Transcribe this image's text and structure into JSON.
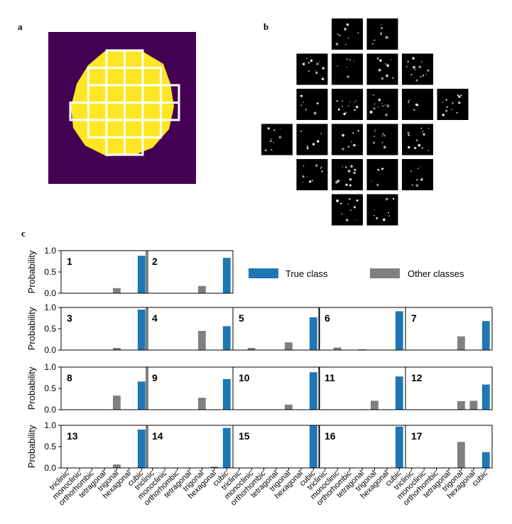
{
  "panels": {
    "a": "a",
    "b": "b",
    "c": "c"
  },
  "legend": {
    "true_label": "True class",
    "other_label": "Other classes"
  },
  "colors": {
    "true": "#1f77b4",
    "other": "#808080",
    "map_background": "#440154",
    "map_fill": "#fde725",
    "grid": "#ffffff",
    "pattern_background": "#000000"
  },
  "panel_a": {
    "type": "heatmap",
    "description_colors": [
      "#440154",
      "#fde725"
    ]
  },
  "panel_b": {
    "type": "image-grid",
    "row_tile_counts": [
      2,
      4,
      5,
      5,
      4,
      2
    ]
  },
  "chart_data": {
    "type": "bar",
    "categories": [
      "triclinic",
      "monoclinic",
      "orthorhombic",
      "tetragonal",
      "trigonal",
      "hexagonal",
      "cubic"
    ],
    "ylabel": "Probability",
    "ylim": [
      0,
      1
    ],
    "yticks": [
      "0.0",
      "0.5",
      "1.0"
    ],
    "legend_placement": "top-right",
    "true_class": "cubic",
    "grid": false,
    "subplots": [
      {
        "label": "1",
        "values": [
          0,
          0,
          0,
          0,
          0.12,
          0,
          0.88
        ]
      },
      {
        "label": "2",
        "values": [
          0,
          0,
          0,
          0,
          0.17,
          0,
          0.83
        ]
      },
      {
        "label": "3",
        "values": [
          0,
          0,
          0,
          0,
          0.05,
          0,
          0.95
        ]
      },
      {
        "label": "4",
        "values": [
          0,
          0,
          0,
          0,
          0.45,
          0,
          0.56
        ]
      },
      {
        "label": "5",
        "values": [
          0,
          0.05,
          0,
          0,
          0.18,
          0,
          0.77
        ]
      },
      {
        "label": "6",
        "values": [
          0,
          0.06,
          0,
          0.02,
          0,
          0,
          0.91
        ]
      },
      {
        "label": "7",
        "values": [
          0,
          0,
          0,
          0,
          0.32,
          0,
          0.68
        ]
      },
      {
        "label": "8",
        "values": [
          0,
          0,
          0,
          0,
          0.33,
          0,
          0.66
        ]
      },
      {
        "label": "9",
        "values": [
          0,
          0,
          0,
          0,
          0.28,
          0,
          0.72
        ]
      },
      {
        "label": "10",
        "values": [
          0,
          0,
          0,
          0,
          0.12,
          0,
          0.88
        ]
      },
      {
        "label": "11",
        "values": [
          0,
          0,
          0,
          0.01,
          0.21,
          0,
          0.78
        ]
      },
      {
        "label": "12",
        "values": [
          0,
          0,
          0,
          0,
          0.2,
          0.21,
          0.59
        ]
      },
      {
        "label": "13",
        "values": [
          0,
          0,
          0,
          0,
          0.08,
          0,
          0.9
        ]
      },
      {
        "label": "14",
        "values": [
          0,
          0,
          0,
          0,
          0,
          0.03,
          0.94
        ]
      },
      {
        "label": "15",
        "values": [
          0,
          0,
          0,
          0,
          0,
          0,
          1.0
        ]
      },
      {
        "label": "16",
        "values": [
          0,
          0,
          0,
          0,
          0.01,
          0,
          0.97
        ]
      },
      {
        "label": "17",
        "values": [
          0,
          0,
          0,
          0,
          0.61,
          0,
          0.37
        ]
      }
    ]
  }
}
